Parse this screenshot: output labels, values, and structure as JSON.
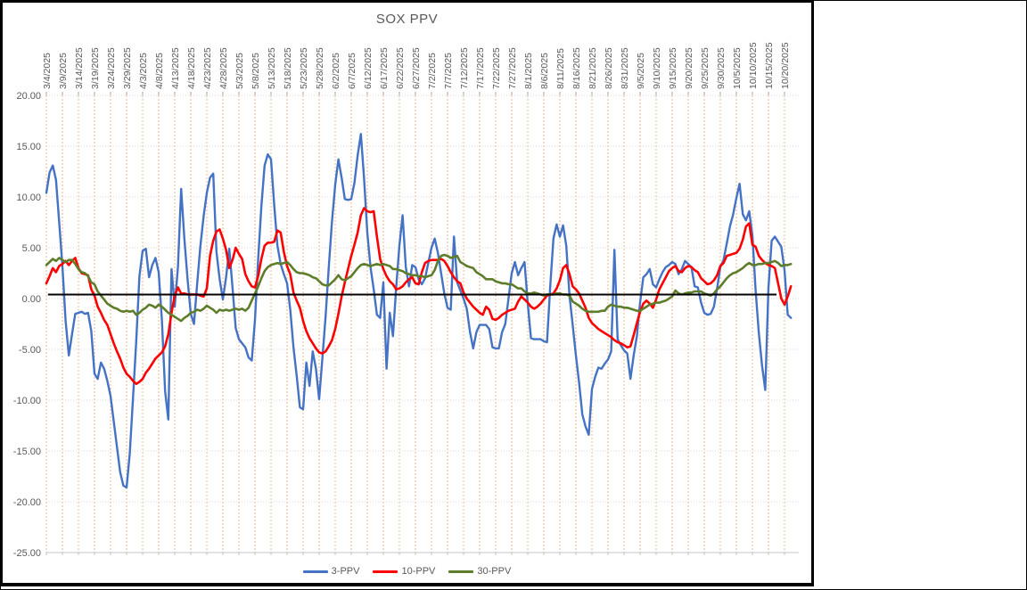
{
  "chart_data": {
    "type": "line",
    "title": "SOX PPV",
    "title_color": "#595959",
    "label_color": "#595959",
    "x_axis": {
      "tick_interval_days": 5,
      "domain_days": [
        0,
        234
      ],
      "label_rotation_deg": 90,
      "tick_labels": [
        "3/4/2025",
        "3/9/2025",
        "3/14/2025",
        "3/19/2025",
        "3/24/2025",
        "3/29/2025",
        "4/3/2025",
        "4/8/2025",
        "4/13/2025",
        "4/18/2025",
        "4/23/2025",
        "4/28/2025",
        "5/3/2025",
        "5/8/2025",
        "5/13/2025",
        "5/18/2025",
        "5/23/2025",
        "5/28/2025",
        "6/2/2025",
        "6/7/2025",
        "6/12/2025",
        "6/17/2025",
        "6/22/2025",
        "6/27/2025",
        "7/2/2025",
        "7/7/2025",
        "7/12/2025",
        "7/17/2025",
        "7/22/2025",
        "7/27/2025",
        "8/1/2025",
        "8/6/2025",
        "8/11/2025",
        "8/16/2025",
        "8/21/2025",
        "8/26/2025",
        "8/31/2025",
        "9/5/2025",
        "9/10/2025",
        "9/15/2025",
        "9/20/2025",
        "9/25/2025",
        "9/30/2025",
        "10/5/2025",
        "10/10/2025",
        "10/15/2025",
        "10/20/2025"
      ]
    },
    "y_axis": {
      "min": -25,
      "max": 20,
      "tick_step": 5,
      "tick_labels": [
        "20.00",
        "15.00",
        "10.00",
        "5.00",
        "0.00",
        "-5.00",
        "-10.00",
        "-15.00",
        "-20.00",
        "-25.00"
      ]
    },
    "grid": {
      "vertical_color": "#F2C39A",
      "horizontal_color": "#D9D9D9",
      "axis_line_color": "#C6C6C6",
      "tick_mark_color": "#A6A6A6"
    },
    "reference_line": {
      "value": 0.4,
      "color": "#000000",
      "start_day": 0.5,
      "end_day": 227.5
    },
    "legend": {
      "position": "bottom",
      "entries": [
        "3-PPV",
        "10-PPV",
        "30-PPV"
      ]
    },
    "series": [
      {
        "name": "3-PPV",
        "color": "#4472C4",
        "width": 2.4,
        "start_date": "3/4/2025",
        "x_unit": "days_since_start",
        "values": [
          10.4,
          12.4,
          13.1,
          11.7,
          7.5,
          3.2,
          -2.2,
          -5.6,
          -3.5,
          -1.5,
          -1.4,
          -1.3,
          -1.5,
          -1.4,
          -3.2,
          -7.4,
          -7.9,
          -6.3,
          -6.9,
          -8.1,
          -9.6,
          -12.1,
          -14.6,
          -17.1,
          -18.4,
          -18.6,
          -15.2,
          -9.8,
          -4.2,
          2.2,
          4.7,
          4.9,
          2.1,
          3.3,
          4.0,
          2.6,
          -2.1,
          -9.1,
          -11.9,
          2.9,
          -0.8,
          3.1,
          10.8,
          5.9,
          1.9,
          -1.5,
          -2.5,
          1.5,
          5.2,
          8.1,
          10.4,
          11.9,
          12.3,
          4.6,
          1.9,
          -0.1,
          2.1,
          4.9,
          1.1,
          -2.9,
          -4.0,
          -4.4,
          -4.8,
          -5.8,
          -6.1,
          -2.1,
          3.9,
          9.1,
          13.1,
          14.2,
          13.7,
          9.2,
          5.2,
          3.4,
          2.4,
          1.5,
          -1.1,
          -4.8,
          -7.6,
          -10.7,
          -10.9,
          -6.3,
          -8.6,
          -5.2,
          -6.9,
          -9.9,
          -5.9,
          -1.8,
          3.1,
          7.6,
          11.2,
          13.7,
          11.9,
          9.8,
          9.7,
          9.8,
          11.4,
          14.1,
          16.2,
          11.8,
          6.5,
          3.1,
          0.9,
          -1.6,
          -1.9,
          1.6,
          -6.9,
          -1.4,
          -3.7,
          1.1,
          5.2,
          8.2,
          3.1,
          1.2,
          3.3,
          3.1,
          1.9,
          1.4,
          2.0,
          3.5,
          5.0,
          5.9,
          4.5,
          2.5,
          0.5,
          -0.9,
          -1.1,
          6.1,
          1.6,
          0.8,
          0.0,
          -1.0,
          -3.3,
          -4.9,
          -3.3,
          -2.6,
          -2.6,
          -2.6,
          -3.0,
          -4.8,
          -4.9,
          -4.9,
          -3.3,
          -2.5,
          0.0,
          2.5,
          3.6,
          2.3,
          3.0,
          3.6,
          -0.5,
          -3.9,
          -4.0,
          -4.0,
          -4.0,
          -4.2,
          -4.3,
          1.2,
          5.9,
          7.3,
          6.1,
          7.2,
          5.2,
          0.3,
          -2.6,
          -5.6,
          -8.3,
          -11.4,
          -12.6,
          -13.4,
          -8.9,
          -7.7,
          -6.8,
          -6.9,
          -6.4,
          -6.0,
          -5.2,
          4.8,
          -4.0,
          -4.6,
          -5.1,
          -5.4,
          -7.9,
          -5.6,
          -3.7,
          -0.4,
          2.1,
          2.4,
          2.9,
          1.4,
          1.1,
          1.9,
          2.6,
          3.1,
          3.3,
          3.6,
          3.4,
          2.4,
          2.9,
          3.7,
          3.4,
          3.1,
          1.2,
          1.1,
          -0.4,
          -1.4,
          -1.6,
          -1.5,
          -0.8,
          1.0,
          3.1,
          3.8,
          5.4,
          7.1,
          8.3,
          9.9,
          11.3,
          8.3,
          7.7,
          8.6,
          6.2,
          0.8,
          -3.4,
          -6.6,
          -9.0,
          1.1,
          5.7,
          6.1,
          5.6,
          5.1,
          2.8,
          -1.6,
          -1.9
        ]
      },
      {
        "name": "10-PPV",
        "color": "#FF0000",
        "width": 2.6,
        "start_date": "3/4/2025",
        "x_unit": "days_since_start",
        "values": [
          1.5,
          2.2,
          3.0,
          2.6,
          3.2,
          3.4,
          3.7,
          3.3,
          3.7,
          4.0,
          3.0,
          2.5,
          2.4,
          2.3,
          0.9,
          0.3,
          -0.8,
          -1.4,
          -2.1,
          -2.6,
          -3.5,
          -4.4,
          -5.2,
          -5.9,
          -6.8,
          -7.4,
          -7.7,
          -8.1,
          -8.4,
          -8.2,
          -7.9,
          -7.3,
          -6.9,
          -6.4,
          -5.9,
          -5.6,
          -5.3,
          -4.7,
          -3.5,
          -1.4,
          0.3,
          1.1,
          0.5,
          0.5,
          0.4,
          0.4,
          0.4,
          0.4,
          0.3,
          0.2,
          1.0,
          4.2,
          5.7,
          6.6,
          6.8,
          5.9,
          4.8,
          3.0,
          3.8,
          5.0,
          4.4,
          3.9,
          2.4,
          1.7,
          1.2,
          1.1,
          2.2,
          3.9,
          5.2,
          5.5,
          5.5,
          5.6,
          6.7,
          6.5,
          4.6,
          3.2,
          2.4,
          0.6,
          -0.2,
          -0.9,
          -2.2,
          -3.2,
          -3.9,
          -4.4,
          -4.9,
          -5.3,
          -5.4,
          -5.2,
          -4.7,
          -4.1,
          -3.0,
          -1.5,
          0.2,
          1.6,
          2.9,
          4.2,
          5.3,
          6.5,
          8.2,
          8.9,
          8.6,
          8.5,
          8.6,
          6.1,
          3.9,
          2.9,
          2.2,
          1.7,
          1.4,
          0.9,
          1.0,
          1.2,
          1.6,
          1.9,
          2.1,
          1.5,
          1.4,
          2.6,
          3.5,
          3.7,
          3.8,
          3.8,
          3.8,
          3.9,
          3.7,
          3.2,
          2.6,
          2.1,
          1.7,
          1.5,
          0.6,
          0.0,
          -0.4,
          -0.8,
          -1.1,
          -1.4,
          -1.6,
          -0.8,
          -1.1,
          -2.0,
          -2.1,
          -1.9,
          -1.6,
          -1.4,
          -1.2,
          -1.1,
          -1.0,
          -0.3,
          0.2,
          -0.1,
          -0.4,
          -0.8,
          -1.0,
          -0.8,
          -0.5,
          -0.1,
          0.3,
          0.4,
          0.5,
          1.0,
          1.8,
          3.0,
          3.3,
          2.4,
          1.2,
          0.9,
          0.5,
          -0.2,
          -0.9,
          -1.9,
          -2.4,
          -2.7,
          -3.0,
          -3.2,
          -3.4,
          -3.6,
          -3.8,
          -4.1,
          -4.3,
          -4.4,
          -4.6,
          -4.8,
          -4.7,
          -3.6,
          -2.4,
          -1.3,
          -0.5,
          -0.2,
          -0.5,
          -0.9,
          -0.1,
          0.9,
          1.5,
          2.1,
          2.7,
          3.0,
          3.2,
          2.7,
          2.6,
          3.0,
          3.2,
          3.1,
          2.8,
          2.6,
          2.0,
          1.7,
          1.4,
          1.5,
          1.8,
          2.3,
          3.2,
          3.5,
          4.2,
          4.3,
          4.4,
          4.5,
          4.9,
          5.8,
          7.1,
          7.4,
          5.3,
          5.1,
          4.2,
          3.8,
          3.5,
          3.3,
          3.2,
          3.0,
          1.5,
          0.0,
          -0.6,
          0.2,
          1.2
        ]
      },
      {
        "name": "30-PPV",
        "color": "#5E7D2B",
        "width": 2.6,
        "start_date": "3/4/2025",
        "x_unit": "days_since_start",
        "values": [
          3.3,
          3.6,
          3.9,
          3.7,
          4.0,
          3.8,
          3.6,
          3.8,
          3.8,
          3.4,
          2.9,
          2.6,
          2.5,
          2.2,
          1.6,
          1.4,
          0.7,
          0.3,
          -0.1,
          -0.5,
          -0.7,
          -0.9,
          -1.0,
          -1.2,
          -1.3,
          -1.2,
          -1.3,
          -1.2,
          -1.6,
          -1.4,
          -1.1,
          -0.9,
          -0.6,
          -0.7,
          -0.9,
          -0.6,
          -0.8,
          -1.1,
          -1.4,
          -1.6,
          -1.8,
          -2.0,
          -2.2,
          -1.9,
          -1.7,
          -1.4,
          -1.3,
          -1.1,
          -1.2,
          -1.0,
          -0.7,
          -0.9,
          -1.1,
          -1.4,
          -1.1,
          -1.2,
          -1.1,
          -1.2,
          -1.1,
          -1.0,
          -1.1,
          -1.0,
          -1.2,
          -0.9,
          -0.2,
          0.5,
          1.2,
          2.0,
          2.7,
          3.1,
          3.3,
          3.4,
          3.5,
          3.4,
          3.5,
          3.6,
          3.3,
          2.9,
          2.6,
          2.5,
          2.5,
          2.4,
          2.3,
          2.1,
          2.0,
          1.7,
          1.4,
          1.3,
          1.3,
          1.6,
          1.9,
          2.3,
          1.9,
          1.8,
          2.0,
          2.2,
          2.6,
          3.0,
          3.3,
          3.4,
          3.3,
          3.2,
          3.3,
          3.4,
          3.3,
          3.4,
          3.3,
          3.2,
          2.9,
          2.9,
          2.8,
          2.7,
          2.5,
          2.4,
          2.3,
          2.3,
          2.2,
          2.2,
          2.1,
          2.2,
          2.3,
          2.8,
          3.7,
          4.2,
          4.3,
          4.2,
          4.0,
          4.1,
          4.2,
          3.6,
          3.4,
          3.2,
          3.1,
          3.0,
          2.6,
          2.4,
          2.2,
          1.9,
          1.9,
          1.9,
          1.7,
          1.6,
          1.5,
          1.5,
          1.4,
          1.4,
          1.2,
          1.0,
          1.0,
          0.7,
          0.5,
          0.5,
          0.6,
          0.5,
          0.4,
          0.3,
          0.4,
          0.4,
          0.4,
          0.5,
          0.5,
          0.4,
          0.4,
          0.3,
          -0.3,
          -0.5,
          -0.7,
          -1.0,
          -1.2,
          -1.3,
          -1.3,
          -1.3,
          -1.3,
          -1.2,
          -1.2,
          -0.8,
          -0.6,
          -0.7,
          -0.8,
          -0.8,
          -0.9,
          -0.9,
          -1.0,
          -1.1,
          -1.2,
          -1.2,
          -1.0,
          -0.8,
          -0.6,
          -0.5,
          -0.4,
          -0.4,
          -0.3,
          -0.2,
          0.0,
          0.2,
          0.8,
          0.5,
          0.4,
          0.5,
          0.6,
          0.6,
          0.7,
          0.7,
          0.7,
          0.5,
          0.4,
          0.3,
          0.5,
          0.9,
          1.2,
          1.6,
          2.0,
          2.3,
          2.5,
          2.6,
          2.8,
          3.0,
          3.3,
          3.5,
          3.3,
          3.3,
          3.4,
          3.4,
          3.5,
          3.5,
          3.6,
          3.7,
          3.5,
          3.2,
          3.3,
          3.3,
          3.4
        ]
      }
    ]
  }
}
